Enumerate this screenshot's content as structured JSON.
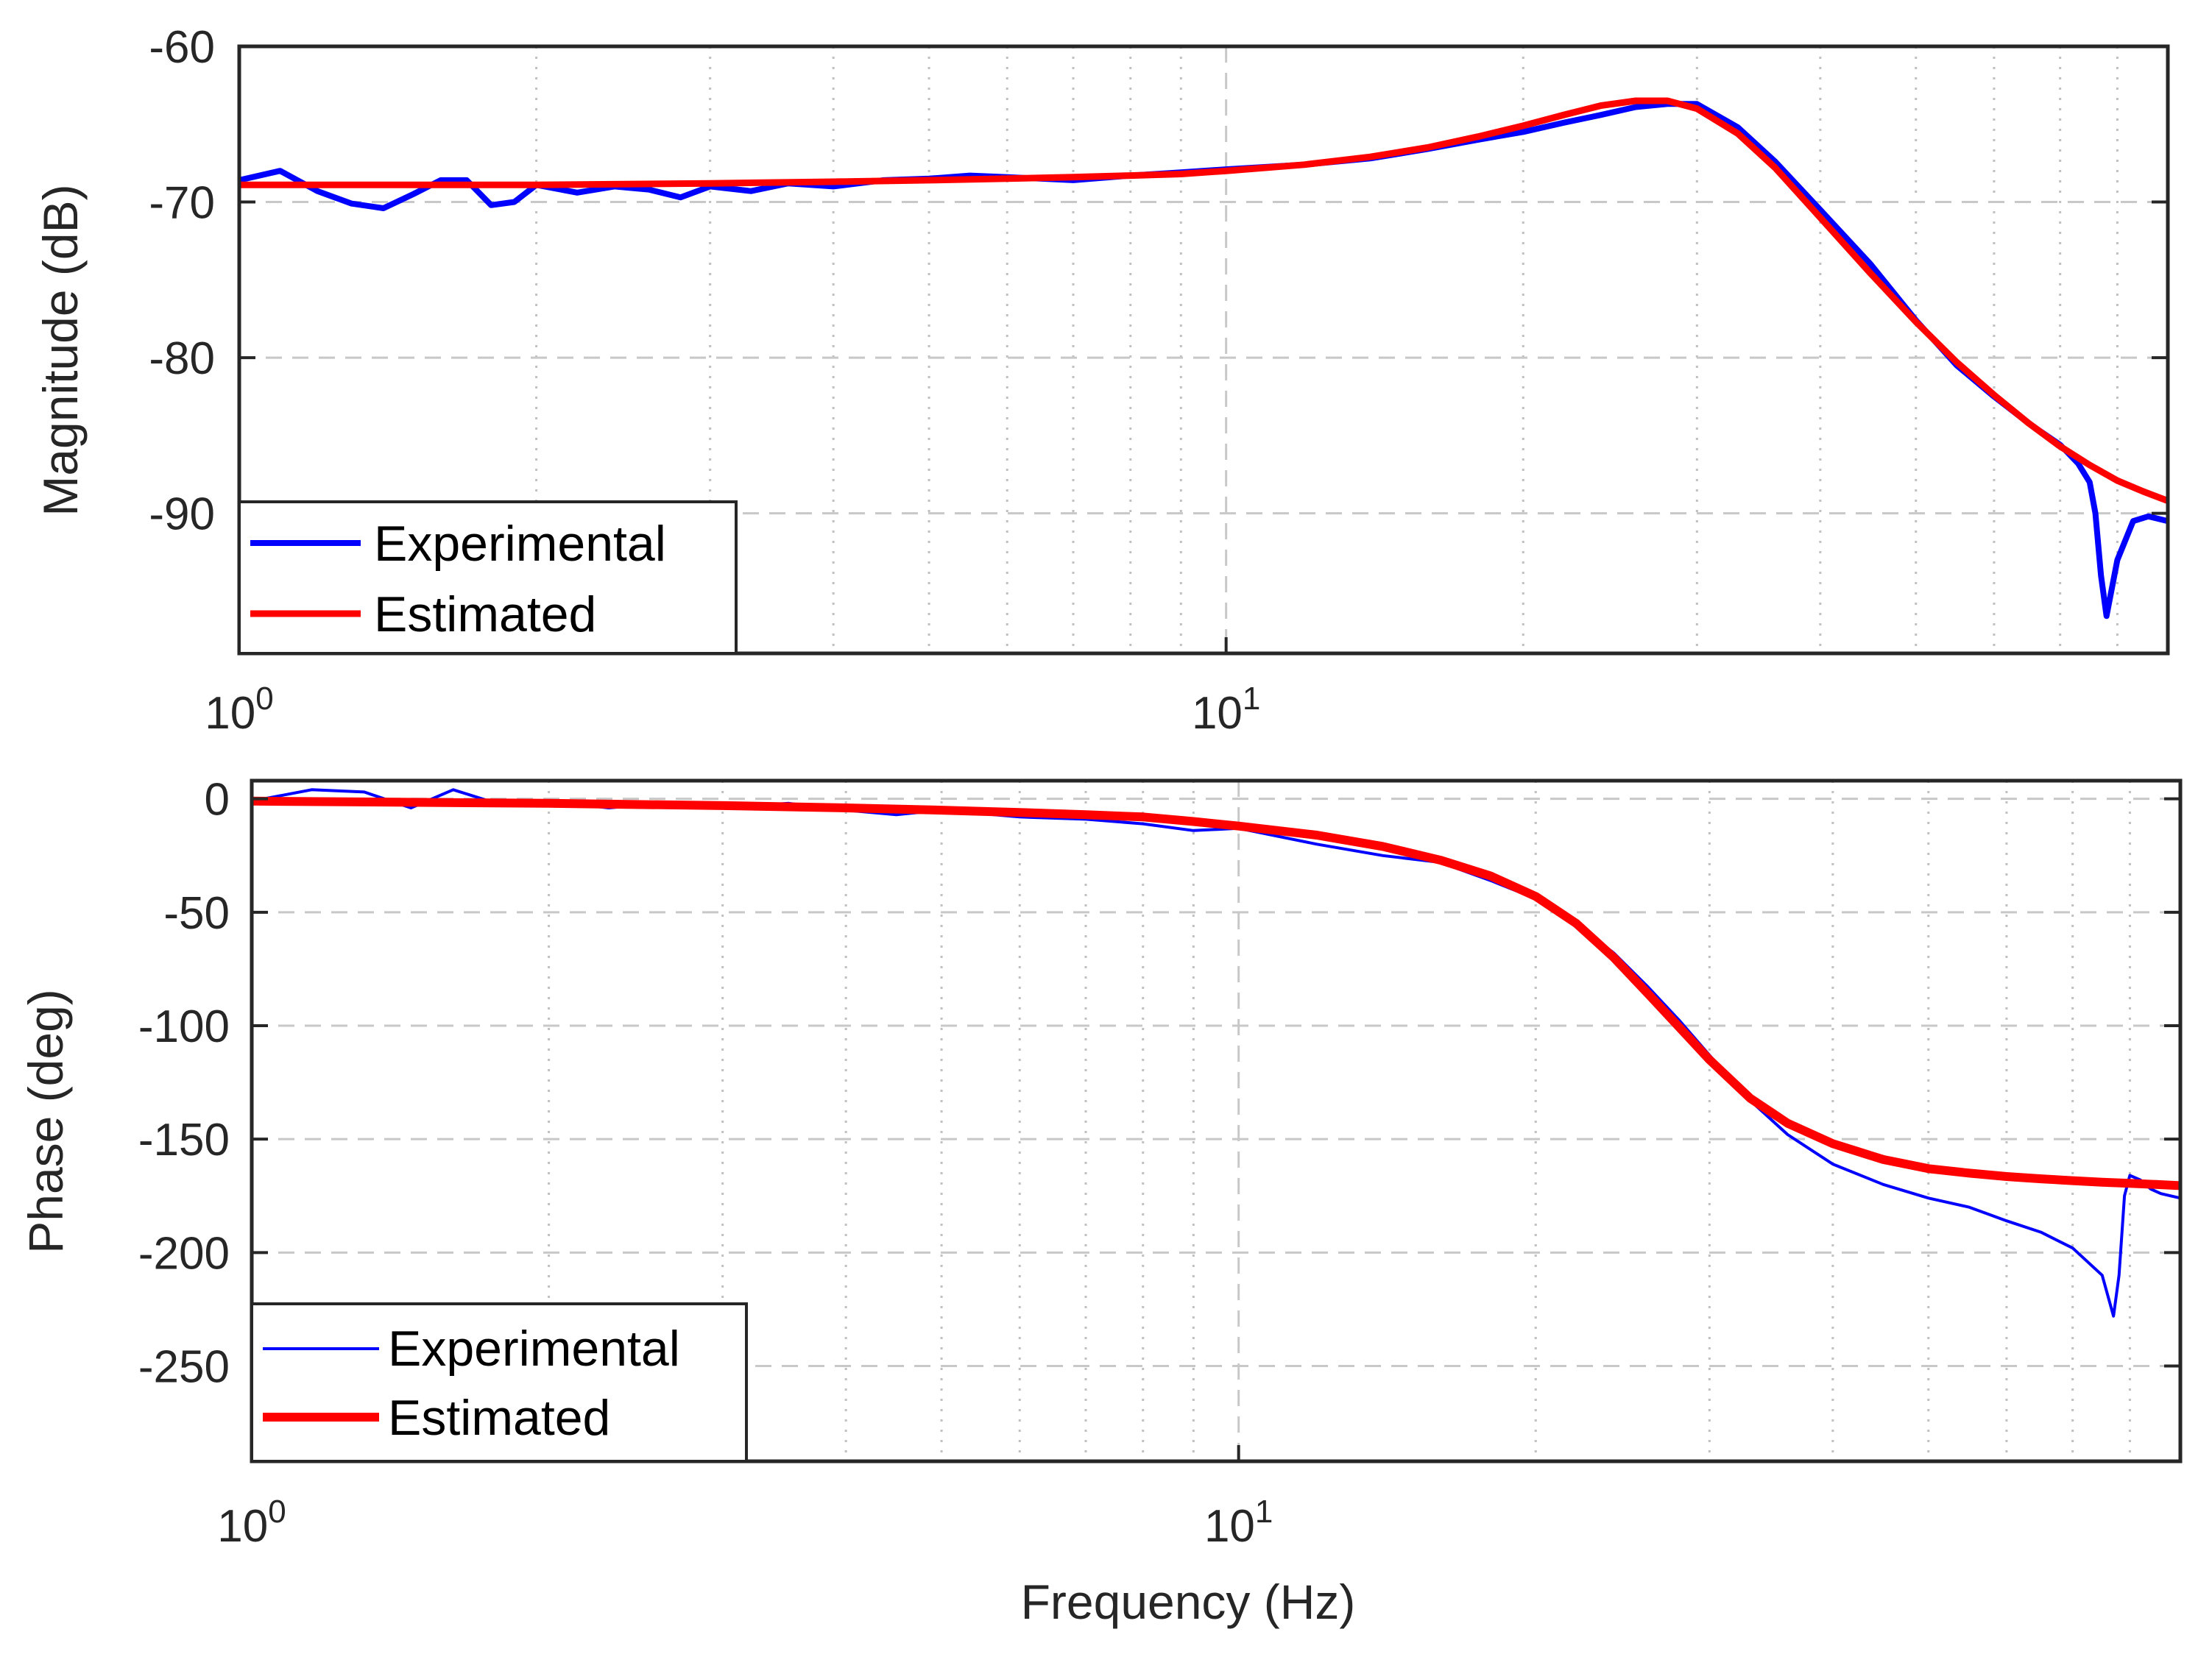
{
  "chart_data": [
    {
      "type": "line",
      "panel": "magnitude",
      "xscale": "log",
      "xlim": [
        1,
        90
      ],
      "ylim": [
        -99,
        -60
      ],
      "xticks": [
        1,
        10
      ],
      "xtick_labels": [
        {
          "base": "10",
          "exp": "0"
        },
        {
          "base": "10",
          "exp": "1"
        }
      ],
      "yticks": [
        -60,
        -70,
        -80,
        -90
      ],
      "ytick_labels": [
        "-60",
        "-70",
        "-80",
        "-90"
      ],
      "xlabel": "",
      "ylabel": "Magnitude (dB)",
      "grid": true,
      "legend_position": "bottom-left",
      "series": [
        {
          "name": "Experimental",
          "color": "#0000ff",
          "x": [
            1,
            1.1,
            1.2,
            1.3,
            1.4,
            1.5,
            1.6,
            1.7,
            1.8,
            1.9,
            2,
            2.2,
            2.4,
            2.6,
            2.8,
            3,
            3.3,
            3.6,
            4,
            4.5,
            5,
            5.5,
            6,
            7,
            8,
            9,
            10,
            12,
            14,
            16,
            18,
            20,
            22,
            24,
            26,
            28,
            30,
            33,
            36,
            40,
            45,
            50,
            55,
            60,
            65,
            70,
            73,
            75,
            76,
            77,
            78,
            80,
            83,
            86,
            90
          ],
          "y": [
            -68.6,
            -68,
            -69.3,
            -70.1,
            -70.4,
            -69.5,
            -68.6,
            -68.6,
            -70.2,
            -70,
            -68.9,
            -69.4,
            -69,
            -69.2,
            -69.7,
            -69,
            -69.3,
            -68.8,
            -69,
            -68.6,
            -68.5,
            -68.3,
            -68.4,
            -68.6,
            -68.3,
            -68.1,
            -67.9,
            -67.6,
            -67.2,
            -66.6,
            -66,
            -65.5,
            -64.9,
            -64.4,
            -63.9,
            -63.7,
            -63.7,
            -65.2,
            -67.4,
            -70.5,
            -74,
            -77.6,
            -80.5,
            -82.5,
            -84.2,
            -85.6,
            -86.8,
            -88,
            -90,
            -94,
            -96.6,
            -93,
            -90.5,
            -90.2,
            -90.5
          ]
        },
        {
          "name": "Estimated",
          "color": "#ff0000",
          "x": [
            1,
            2,
            3,
            4,
            5,
            6,
            7,
            8,
            9,
            10,
            12,
            14,
            16,
            18,
            20,
            22,
            24,
            26,
            28,
            30,
            33,
            36,
            40,
            45,
            50,
            55,
            60,
            65,
            70,
            75,
            80,
            85,
            90
          ],
          "y": [
            -68.9,
            -68.9,
            -68.8,
            -68.7,
            -68.6,
            -68.5,
            -68.4,
            -68.3,
            -68.2,
            -68,
            -67.6,
            -67.1,
            -66.5,
            -65.8,
            -65.1,
            -64.4,
            -63.8,
            -63.5,
            -63.5,
            -64,
            -65.6,
            -67.8,
            -71,
            -74.6,
            -77.7,
            -80.3,
            -82.4,
            -84.2,
            -85.7,
            -86.9,
            -87.9,
            -88.6,
            -89.2
          ]
        }
      ]
    },
    {
      "type": "line",
      "panel": "phase",
      "xscale": "log",
      "xlim": [
        1,
        90
      ],
      "ylim": [
        -292,
        8
      ],
      "xticks": [
        1,
        10
      ],
      "xtick_labels": [
        {
          "base": "10",
          "exp": "0"
        },
        {
          "base": "10",
          "exp": "1"
        }
      ],
      "yticks": [
        0,
        -50,
        -100,
        -150,
        -200,
        -250
      ],
      "ytick_labels": [
        "0",
        "-50",
        "-100",
        "-150",
        "-200",
        "-250"
      ],
      "xlabel": "Frequency (Hz)",
      "ylabel": "Phase (deg)",
      "grid": true,
      "legend_position": "bottom-left",
      "series": [
        {
          "name": "Experimental",
          "color": "#0000ff",
          "x": [
            1,
            1.15,
            1.3,
            1.45,
            1.6,
            1.8,
            2,
            2.3,
            2.6,
            3,
            3.5,
            4,
            4.5,
            5,
            6,
            7,
            8,
            9,
            10,
            12,
            14,
            16,
            18,
            20,
            22,
            24,
            26,
            28,
            30,
            33,
            36,
            40,
            45,
            50,
            55,
            60,
            65,
            70,
            75,
            77,
            78,
            79,
            80,
            82,
            84,
            86,
            88,
            90
          ],
          "y": [
            -1,
            4,
            3,
            -4,
            4,
            -3,
            -1,
            -4,
            -2,
            -4,
            -2,
            -5,
            -7,
            -5,
            -8,
            -9,
            -11,
            -14,
            -13,
            -20,
            -25,
            -28,
            -36,
            -44,
            -55,
            -68,
            -83,
            -98,
            -113,
            -133,
            -148,
            -161,
            -170,
            -176,
            -180,
            -186,
            -191,
            -198,
            -210,
            -228,
            -210,
            -175,
            -166,
            -168,
            -172,
            -174,
            -175,
            -176
          ]
        },
        {
          "name": "Estimated",
          "color": "#ff0000",
          "x": [
            1,
            2,
            3,
            4,
            5,
            6,
            7,
            8,
            9,
            10,
            12,
            14,
            16,
            18,
            20,
            22,
            24,
            26,
            28,
            30,
            33,
            36,
            40,
            45,
            50,
            55,
            60,
            65,
            70,
            75,
            80,
            85,
            90
          ],
          "y": [
            -1,
            -2,
            -3,
            -4,
            -5,
            -6,
            -7,
            -8,
            -10,
            -12,
            -16,
            -21,
            -27,
            -34,
            -43,
            -55,
            -70,
            -86,
            -101,
            -115,
            -132,
            -143,
            -152,
            -159,
            -163,
            -165,
            -166.5,
            -167.5,
            -168.3,
            -169,
            -169.5,
            -170,
            -170.5
          ]
        }
      ]
    }
  ]
}
